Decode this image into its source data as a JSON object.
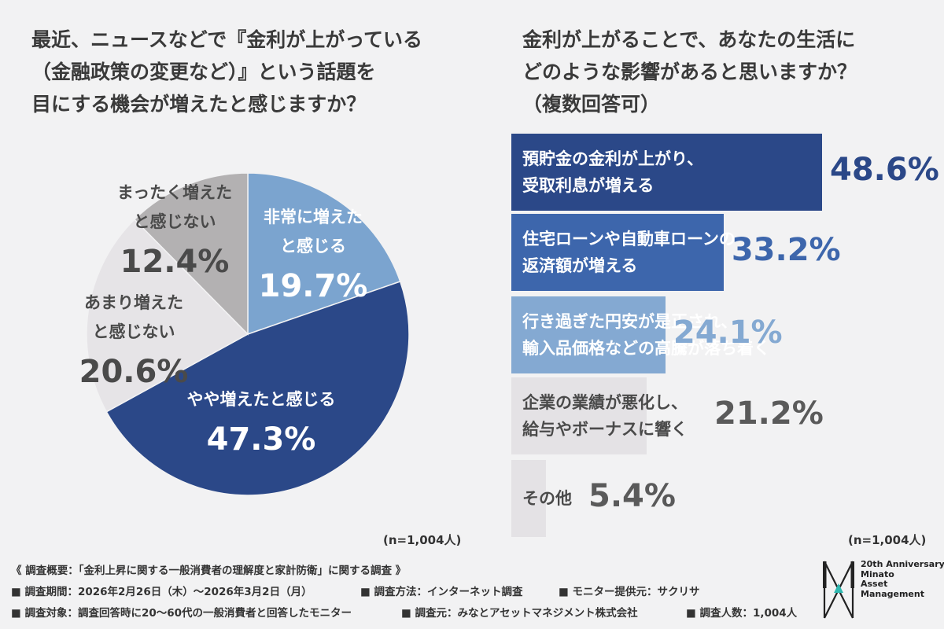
{
  "left_title": "最近、ニュースなどで『金利が上がっている\n（金融政策の変更など）』という話題を\n目にする機会が増えたと感じますか？",
  "right_title": "金利が上がることで、あなたの生活に\nどのような影響があると思いますか？\n（複数回答可）",
  "sample_left": "(n=1,004人)",
  "sample_right": "(n=1,004人)",
  "chart_data": [
    {
      "type": "pie",
      "slices": [
        {
          "label": "非常に増えたと感じる",
          "value": 19.7,
          "display": "19.7%",
          "label_lines": [
            "非常に増えた",
            "と感じる"
          ],
          "color": "#7ba4cf",
          "text_color": "#ffffff"
        },
        {
          "label": "やや増えたと感じる",
          "value": 47.3,
          "display": "47.3%",
          "label_lines": [
            "やや増えたと感じる"
          ],
          "color": "#2b4888",
          "text_color": "#ffffff"
        },
        {
          "label": "あまり増えたと感じない",
          "value": 20.6,
          "display": "20.6%",
          "label_lines": [
            "あまり増えた",
            "と感じない"
          ],
          "color": "#e6e4e7",
          "text_color": "#4a4a4a"
        },
        {
          "label": "まったく増えたと感じない",
          "value": 12.4,
          "display": "12.4%",
          "label_lines": [
            "まったく増えた",
            "と感じない"
          ],
          "color": "#b3b1b2",
          "text_color": "#4a4a4a"
        }
      ]
    },
    {
      "type": "bar",
      "orientation": "horizontal",
      "categories": [
        "預貯金の金利が上がり、\n受取利息が増える",
        "住宅ローンや自動車ローンの\n返済額が増える",
        "行き過ぎた円安が是正され、\n輸入品価格などの高騰が落ち着く",
        "企業の業績が悪化し、\n給与やボーナスに響く",
        "その他"
      ],
      "values": [
        48.6,
        33.2,
        24.1,
        21.2,
        5.4
      ],
      "value_labels": [
        "48.6%",
        "33.2%",
        "24.1%",
        "21.2%",
        "5.4%"
      ],
      "colors": [
        "#2b4888",
        "#3d66ac",
        "#84a9d2",
        "#e4e2e5",
        "#e4e2e5"
      ],
      "label_colors": [
        "#ffffff",
        "#ffffff",
        "#ffffff",
        "#4a4a4a",
        "#4a4a4a"
      ],
      "value_colors": [
        "#2b4888",
        "#3d66ac",
        "#84a9d2",
        "#5a5a5a",
        "#5a5a5a"
      ]
    }
  ],
  "footer": {
    "overview": "《 調査概要：「金利上昇に関する一般消費者の理解度と家計防衛」に関する調査 》",
    "period": "■ 調査期間：2026年2月26日（木）〜2026年3月2日（月）",
    "method": "■ 調査方法：インターネット調査",
    "monitor": "■ モニター提供元：サクリサ",
    "target": "■ 調査対象：調査回答時に20〜60代の一般消費者と回答したモニター",
    "source": "■ 調査元：みなとアセットマネジメント株式会社",
    "count": "■ 調査人数：1,004人"
  },
  "logo": {
    "line1": "20th Anniversary",
    "line2": "Minato",
    "line3": "Asset",
    "line4": "Management",
    "icon": "minato-monogram-icon",
    "accent": "#2fb8b0"
  }
}
